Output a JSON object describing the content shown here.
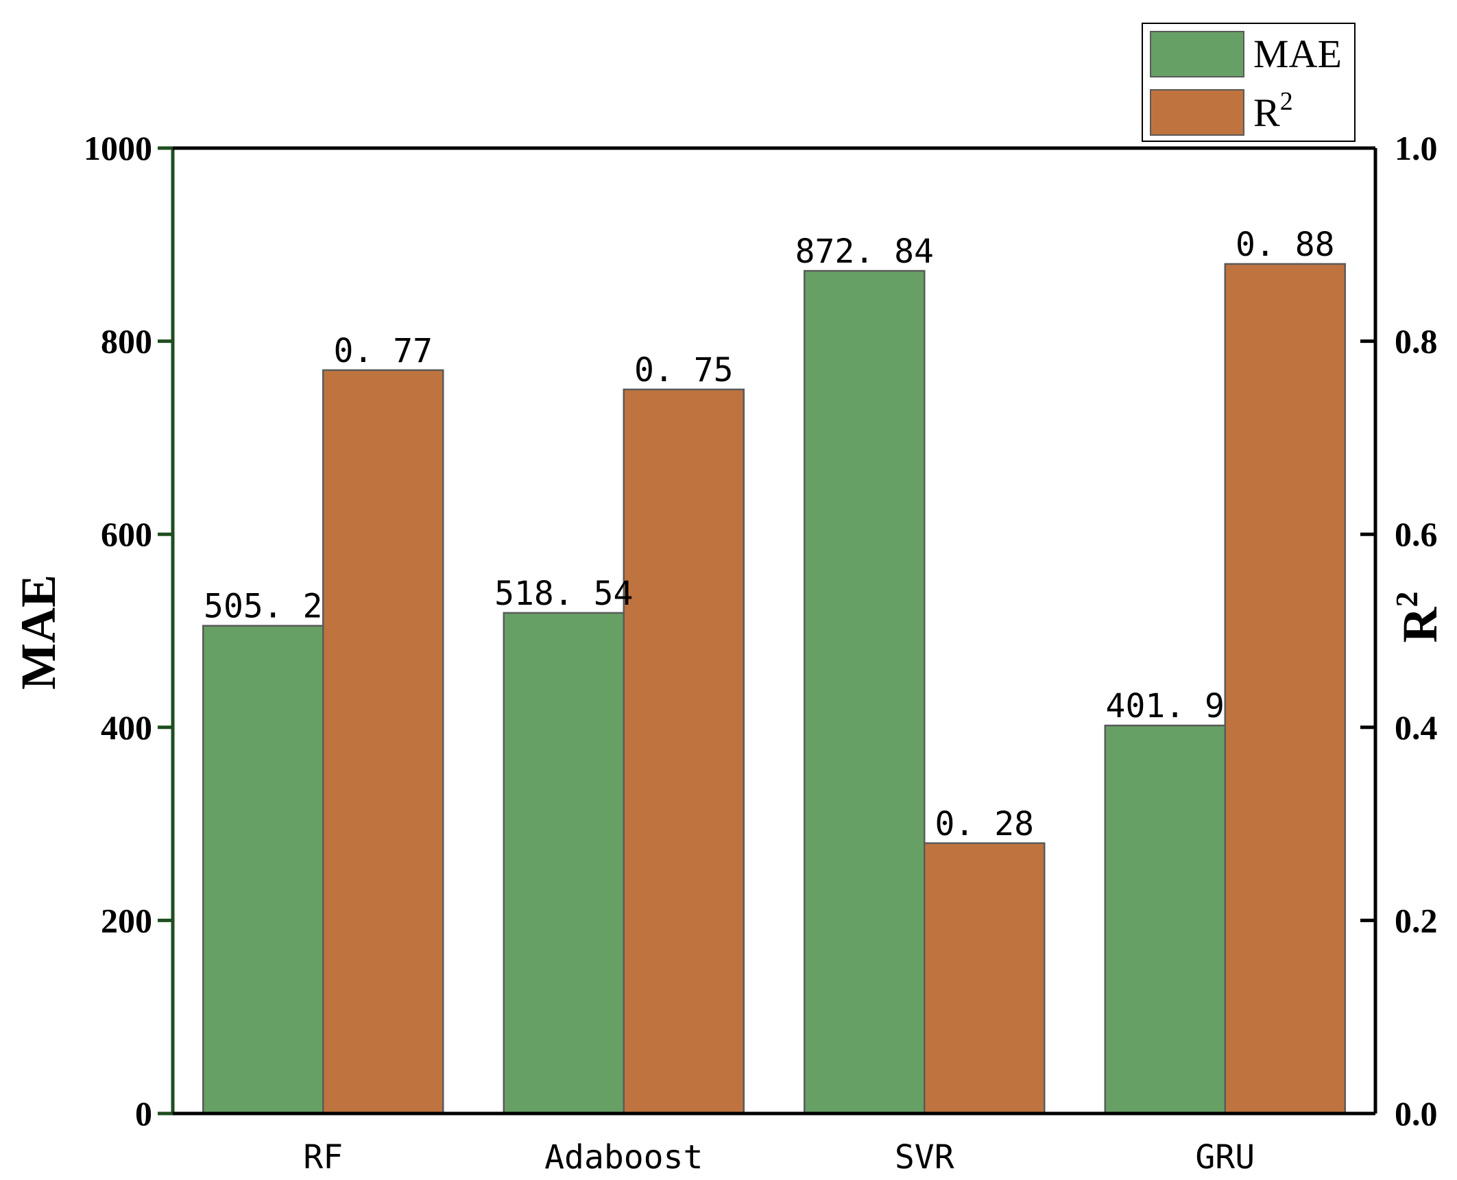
{
  "chart_data": {
    "type": "bar",
    "categories": [
      "RF",
      "Adaboost",
      "SVR",
      "GRU"
    ],
    "series": [
      {
        "name": "MAE",
        "axis": "left",
        "color": "#67a064",
        "values": [
          505.2,
          518.54,
          872.84,
          401.9
        ],
        "labels": [
          "505. 2",
          "518. 54",
          "872. 84",
          "401. 9"
        ]
      },
      {
        "name": "R2",
        "axis": "right",
        "color": "#bf743f",
        "values": [
          0.77,
          0.75,
          0.28,
          0.88
        ],
        "labels": [
          "0. 77",
          "0. 75",
          "0. 28",
          "0. 88"
        ]
      }
    ],
    "left_axis": {
      "label": "MAE",
      "ylim": [
        0,
        1000
      ],
      "ticks": [
        "0",
        "200",
        "400",
        "600",
        "800",
        "1000"
      ]
    },
    "right_axis": {
      "label": "R",
      "label_sup": "2",
      "ylim": [
        0,
        1.0
      ],
      "ticks": [
        "0.0",
        "0.2",
        "0.4",
        "0.6",
        "0.8",
        "1.0"
      ]
    },
    "legend": {
      "position": "top-right",
      "items": [
        {
          "text": "MAE",
          "sup": ""
        },
        {
          "text": "R",
          "sup": "2"
        }
      ]
    },
    "colors": {
      "left_axis": "#1f4d1f",
      "right_axis": "#000000",
      "bar_edge": "#5a5a5a"
    }
  }
}
